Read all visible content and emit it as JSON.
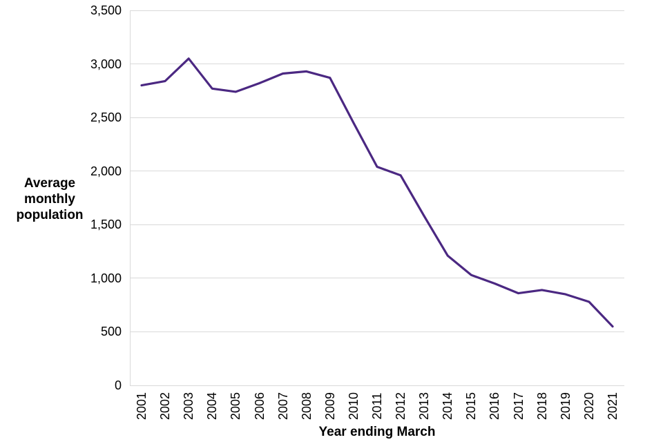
{
  "chart_data": {
    "type": "line",
    "title": "",
    "xlabel": "Year ending March",
    "ylabel": "Average monthly population",
    "categories": [
      "2001",
      "2002",
      "2003",
      "2004",
      "2005",
      "2006",
      "2007",
      "2008",
      "2009",
      "2010",
      "2011",
      "2012",
      "2013",
      "2014",
      "2015",
      "2016",
      "2017",
      "2018",
      "2019",
      "2020",
      "2021"
    ],
    "series": [
      {
        "name": "Average monthly population",
        "values": [
          2800,
          2840,
          3050,
          2770,
          2740,
          2820,
          2910,
          2930,
          2870,
          2450,
          2040,
          1960,
          1580,
          1210,
          1030,
          950,
          860,
          890,
          850,
          780,
          550
        ]
      }
    ],
    "ylim": [
      0,
      3500
    ],
    "yticks": {
      "values": [
        0,
        500,
        1000,
        1500,
        2000,
        2500,
        3000,
        3500
      ],
      "labels": [
        "0",
        "500",
        "1,000",
        "1,500",
        "2,000",
        "2,500",
        "3,000",
        "3,500"
      ]
    },
    "grid": true,
    "legend_position": "none",
    "colors": {
      "line": "#4b2882",
      "gridline": "#d9d9d9",
      "axis_line": "#d9d9d9",
      "text": "#000000",
      "background": "#ffffff"
    }
  }
}
